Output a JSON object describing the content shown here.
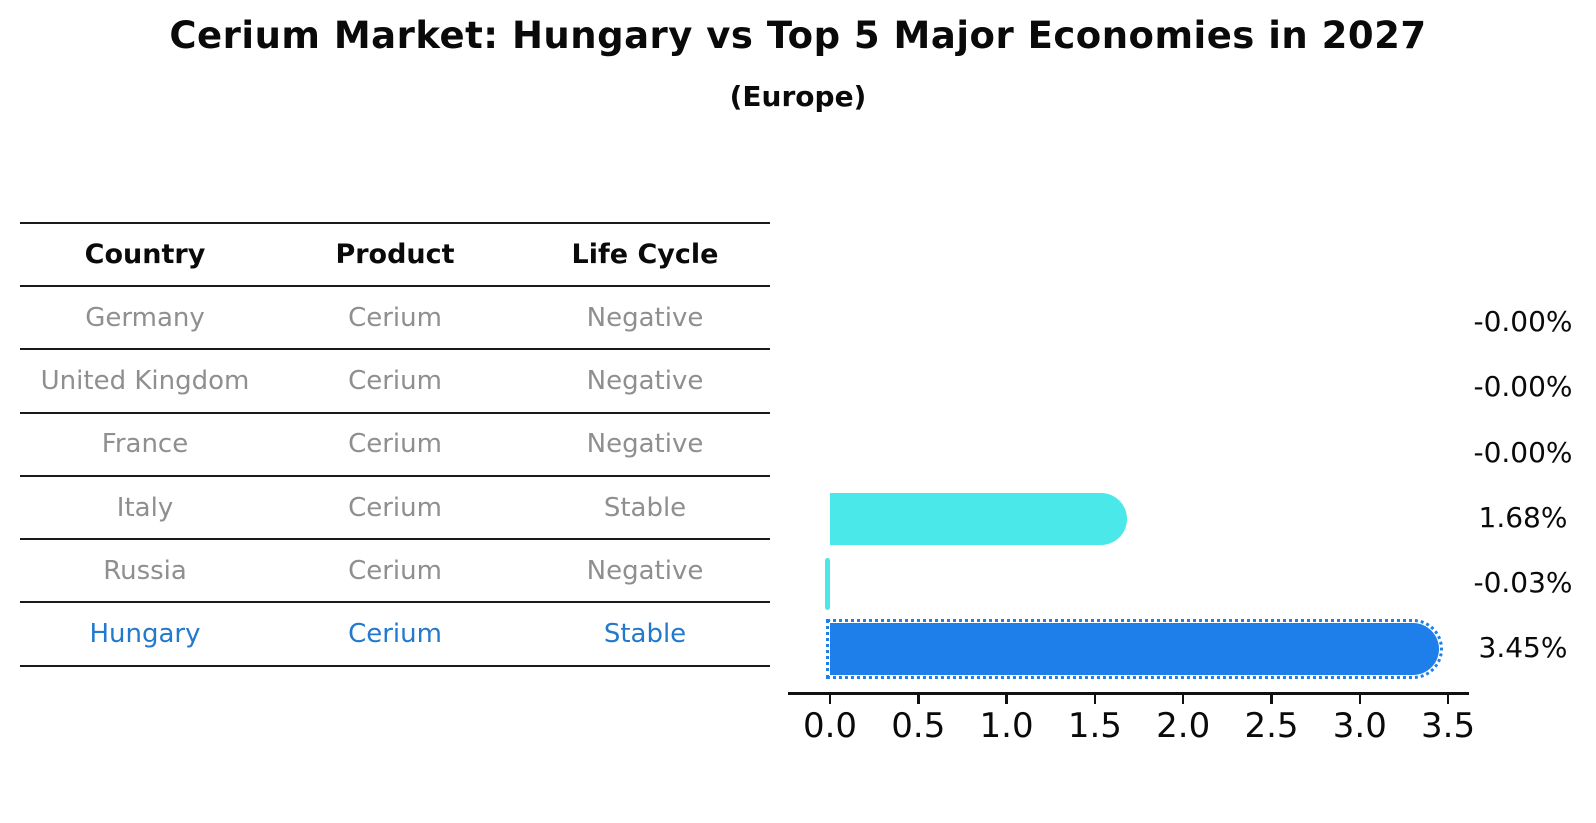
{
  "title": "Cerium Market: Hungary vs Top 5 Major Economies in 2027",
  "subtitle": "(Europe)",
  "table": {
    "headers": [
      "Country",
      "Product",
      "Life Cycle"
    ],
    "rows": [
      {
        "country": "Germany",
        "product": "Cerium",
        "life_cycle": "Negative",
        "highlight": false
      },
      {
        "country": "United Kingdom",
        "product": "Cerium",
        "life_cycle": "Negative",
        "highlight": false
      },
      {
        "country": "France",
        "product": "Cerium",
        "life_cycle": "Negative",
        "highlight": false
      },
      {
        "country": "Italy",
        "product": "Cerium",
        "life_cycle": "Stable",
        "highlight": false
      },
      {
        "country": "Russia",
        "product": "Cerium",
        "life_cycle": "Negative",
        "highlight": false
      },
      {
        "country": "Hungary",
        "product": "Cerium",
        "life_cycle": "Stable",
        "highlight": true
      }
    ]
  },
  "chart_data": {
    "type": "bar",
    "orientation": "horizontal",
    "title": "Cerium Market: Hungary vs Top 5 Major Economies in 2027",
    "subtitle": "(Europe)",
    "categories": [
      "Germany",
      "United Kingdom",
      "France",
      "Italy",
      "Russia",
      "Hungary"
    ],
    "values": [
      -0.0,
      -0.0,
      -0.0,
      1.68,
      -0.03,
      3.45
    ],
    "value_labels": [
      "-0.00%",
      "-0.00%",
      "-0.00%",
      "1.68%",
      "-0.03%",
      "3.45%"
    ],
    "x_ticks": [
      0.0,
      0.5,
      1.0,
      1.5,
      2.0,
      2.5,
      3.0,
      3.5
    ],
    "x_tick_labels": [
      "0.0",
      "0.5",
      "1.0",
      "1.5",
      "2.0",
      "2.5",
      "3.0",
      "3.5"
    ],
    "xlim": [
      -0.24,
      3.62
    ],
    "grid": false,
    "legend": false,
    "highlight_category": "Hungary",
    "bar_color_default": "#4AE8E8",
    "bar_color_highlight": "#1E7FEB"
  },
  "colors": {
    "background": "#ffffff",
    "table_line": "#1a1a1a",
    "table_header_text": "#0a0a0a",
    "table_row_text": "#8f8f8f",
    "highlight_row_text": "#2279cd",
    "bar_default": "#4AE8E8",
    "bar_highlight": "#1E7FEB",
    "axis": "#111111",
    "label_text": "#0a0a0a"
  }
}
